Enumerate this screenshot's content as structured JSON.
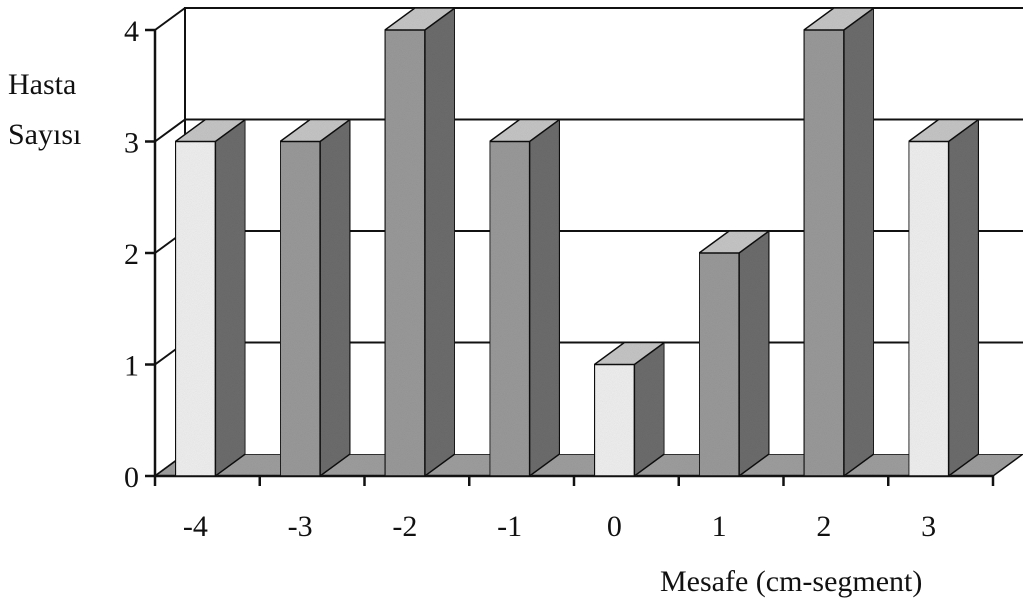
{
  "chart_data": {
    "type": "bar",
    "categories": [
      "-4",
      "-3",
      "-2",
      "-1",
      "0",
      "1",
      "2",
      "3"
    ],
    "values": [
      3,
      3,
      4,
      3,
      1,
      2,
      4,
      3
    ],
    "title": "",
    "ylabel_line1": "Hasta",
    "ylabel_line2": "Sayısı",
    "xlabel": "Mesafe (cm-segment)",
    "ylim": [
      0,
      4
    ],
    "yticks": [
      "0",
      "1",
      "2",
      "3",
      "4"
    ],
    "grid": true,
    "style": "3d",
    "colors": {
      "front_dark": "#9c9c9c",
      "front_light": "#f2f2f2",
      "side": "#6e6e6e",
      "top": "#c8c8c8",
      "floor": "#a0a0a0",
      "grid": "#111111"
    }
  }
}
